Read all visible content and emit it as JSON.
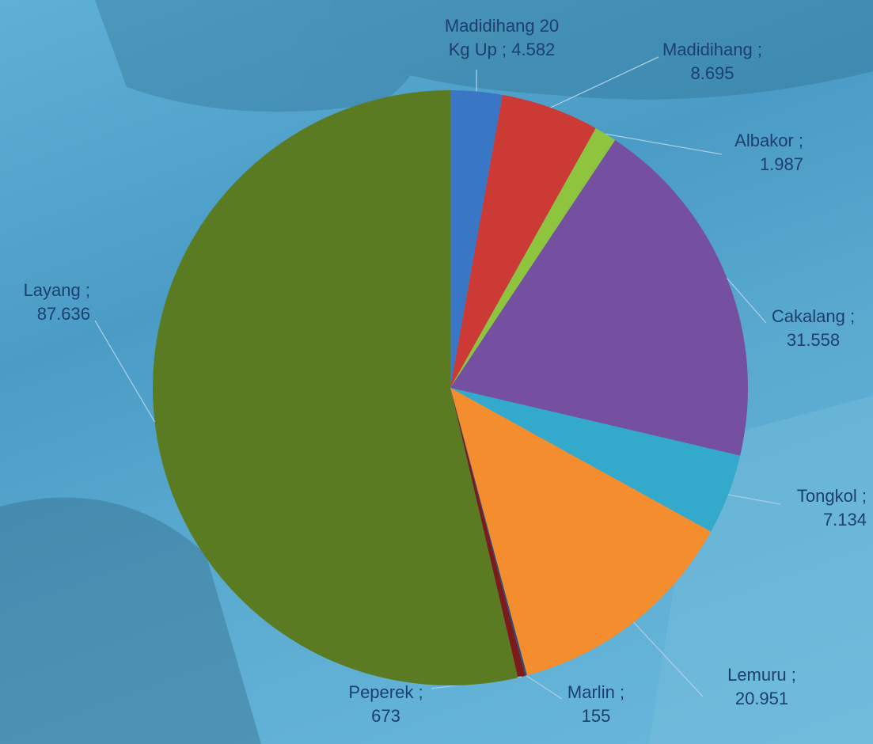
{
  "chart_data": {
    "type": "pie",
    "categories": [
      "Madidihang 20 Kg Up",
      "Madidihang",
      "Albakor",
      "Cakalang",
      "Tongkol",
      "Lemuru",
      "Marlin",
      "Peperek",
      "Layang"
    ],
    "values": [
      4582,
      8695,
      1987,
      31558,
      7134,
      20951,
      155,
      673,
      87636
    ],
    "value_labels": [
      "4.582",
      "8.695",
      "1.987",
      "31.558",
      "7.134",
      "20.951",
      "155",
      "673",
      "87.636"
    ],
    "separator": ";",
    "colors": [
      "#3a76c6",
      "#cc3a36",
      "#8fc43f",
      "#7650a0",
      "#33a9cb",
      "#f38d2d",
      "#2c4d80",
      "#7b1b1b",
      "#5b7b22"
    ]
  }
}
